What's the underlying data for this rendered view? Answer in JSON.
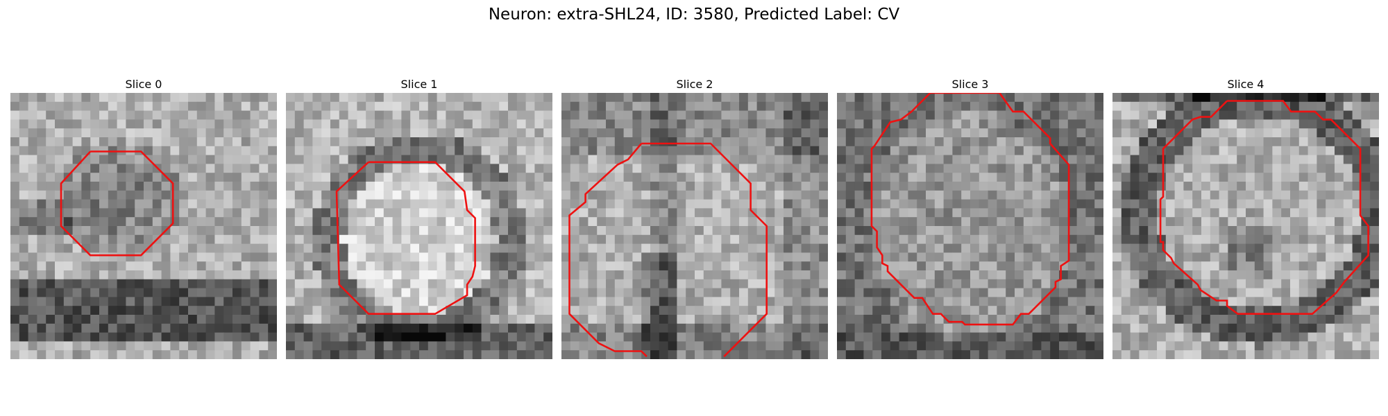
{
  "title": "Neuron: extra-SHL24, ID: 3580, Predicted Label: CV",
  "contour_color": "#ee1111",
  "panels": [
    {
      "title": "Slice 0",
      "contour": [
        [
          0.3,
          0.22
        ],
        [
          0.49,
          0.22
        ],
        [
          0.61,
          0.34
        ],
        [
          0.61,
          0.49
        ],
        [
          0.49,
          0.61
        ],
        [
          0.3,
          0.61
        ],
        [
          0.19,
          0.5
        ],
        [
          0.19,
          0.34
        ]
      ]
    },
    {
      "title": "Slice 1",
      "contour": [
        [
          0.31,
          0.26
        ],
        [
          0.56,
          0.26
        ],
        [
          0.67,
          0.37
        ],
        [
          0.68,
          0.44
        ],
        [
          0.71,
          0.47
        ],
        [
          0.71,
          0.65
        ],
        [
          0.7,
          0.69
        ],
        [
          0.68,
          0.72
        ],
        [
          0.68,
          0.76
        ],
        [
          0.56,
          0.83
        ],
        [
          0.31,
          0.83
        ],
        [
          0.2,
          0.72
        ],
        [
          0.19,
          0.37
        ]
      ]
    },
    {
      "title": "Slice 2",
      "contour": [
        [
          0.3,
          0.19
        ],
        [
          0.56,
          0.19
        ],
        [
          0.71,
          0.34
        ],
        [
          0.71,
          0.44
        ],
        [
          0.77,
          0.5
        ],
        [
          0.77,
          0.83
        ],
        [
          0.61,
          0.99
        ],
        "break",
        [
          0.32,
          0.99
        ],
        [
          0.3,
          0.97
        ],
        [
          0.2,
          0.97
        ],
        [
          0.14,
          0.94
        ],
        [
          0.03,
          0.83
        ],
        [
          0.03,
          0.46
        ],
        [
          0.09,
          0.41
        ],
        [
          0.09,
          0.38
        ],
        [
          0.21,
          0.27
        ],
        [
          0.23,
          0.26
        ],
        [
          0.25,
          0.25
        ]
      ]
    },
    {
      "title": "Slice 3",
      "contour": [
        [
          0.35,
          0.0
        ],
        [
          0.28,
          0.07
        ],
        [
          0.24,
          0.1
        ],
        [
          0.2,
          0.11
        ],
        [
          0.14,
          0.2
        ],
        [
          0.13,
          0.21
        ],
        [
          0.13,
          0.5
        ],
        [
          0.15,
          0.52
        ],
        [
          0.15,
          0.58
        ],
        [
          0.17,
          0.61
        ],
        [
          0.17,
          0.64
        ],
        [
          0.19,
          0.65
        ],
        [
          0.19,
          0.67
        ],
        [
          0.29,
          0.77
        ],
        [
          0.32,
          0.77
        ],
        [
          0.36,
          0.83
        ],
        [
          0.39,
          0.83
        ],
        [
          0.4,
          0.84
        ],
        [
          0.42,
          0.86
        ],
        [
          0.47,
          0.86
        ],
        [
          0.48,
          0.87
        ],
        [
          0.66,
          0.87
        ],
        [
          0.69,
          0.83
        ],
        [
          0.72,
          0.83
        ],
        [
          0.82,
          0.73
        ],
        [
          0.82,
          0.71
        ],
        [
          0.84,
          0.7
        ],
        [
          0.84,
          0.65
        ],
        [
          0.87,
          0.63
        ],
        [
          0.87,
          0.27
        ],
        [
          0.8,
          0.19
        ],
        [
          0.8,
          0.17
        ],
        [
          0.7,
          0.07
        ],
        [
          0.66,
          0.07
        ],
        [
          0.61,
          0.0
        ]
      ]
    },
    {
      "title": "Slice 4",
      "contour": [
        [
          0.43,
          0.03
        ],
        [
          0.64,
          0.03
        ],
        [
          0.67,
          0.07
        ],
        [
          0.76,
          0.07
        ],
        [
          0.79,
          0.1
        ],
        [
          0.82,
          0.1
        ],
        [
          0.93,
          0.21
        ],
        [
          0.93,
          0.46
        ],
        [
          0.96,
          0.5
        ],
        [
          0.96,
          0.61
        ],
        [
          0.87,
          0.71
        ],
        [
          0.84,
          0.75
        ],
        [
          0.75,
          0.83
        ],
        [
          0.47,
          0.83
        ],
        [
          0.43,
          0.8
        ],
        [
          0.43,
          0.78
        ],
        [
          0.39,
          0.78
        ],
        [
          0.33,
          0.74
        ],
        [
          0.32,
          0.72
        ],
        [
          0.23,
          0.64
        ],
        [
          0.22,
          0.62
        ],
        [
          0.2,
          0.6
        ],
        [
          0.19,
          0.59
        ],
        [
          0.19,
          0.56
        ],
        [
          0.18,
          0.56
        ],
        [
          0.18,
          0.4
        ],
        [
          0.19,
          0.39
        ],
        [
          0.19,
          0.21
        ],
        [
          0.3,
          0.1
        ],
        [
          0.33,
          0.09
        ],
        [
          0.37,
          0.09
        ]
      ]
    }
  ]
}
